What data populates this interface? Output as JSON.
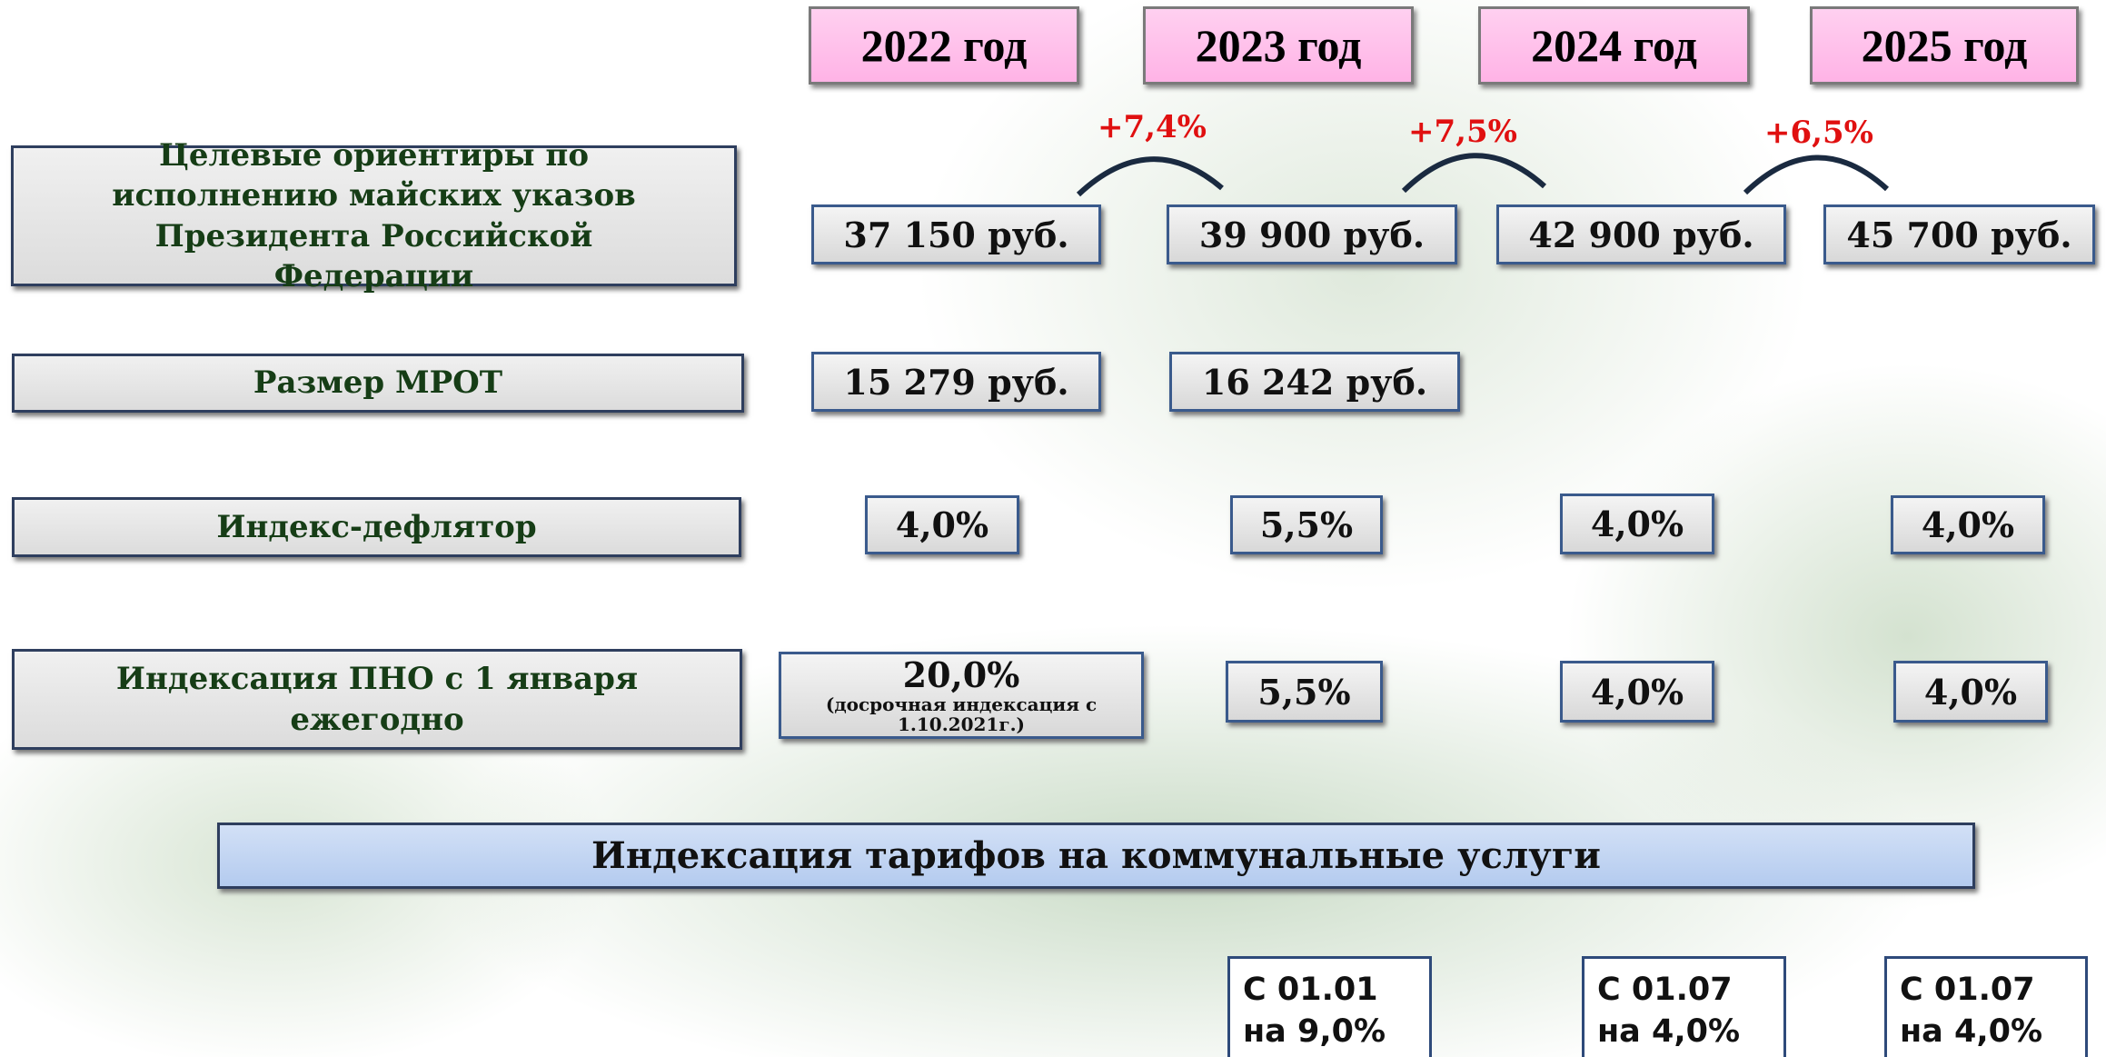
{
  "years": [
    "2022 год",
    "2023 год",
    "2024 год",
    "2025 год"
  ],
  "growth": [
    "+7,4%",
    "+7,5%",
    "+6,5%"
  ],
  "rows": [
    {
      "label": "Целевые ориентиры по исполнению майских указов Президента Российской Федерации",
      "cells": [
        "37 150 руб.",
        "39 900 руб.",
        "42 900 руб.",
        "45 700 руб."
      ]
    },
    {
      "label": "Размер МРОТ",
      "cells": [
        "15 279 руб.",
        "16 242 руб."
      ]
    },
    {
      "label": "Индекс-дефлятор",
      "cells": [
        "4,0%",
        "5,5%",
        "4,0%",
        "4,0%"
      ]
    },
    {
      "label": "Индексация ПНО с 1 января ежегодно",
      "cells": [
        "20,0%",
        "5,5%",
        "4,0%",
        "4,0%"
      ],
      "note": "(досрочная индексация с 1.10.2021г.)"
    }
  ],
  "banner": "Индексация тарифов на коммунальные услуги",
  "tariffs": [
    "С 01.01 на 9,0%",
    "С 01.07 на 4,0%",
    "С 01.07 на 4,0%"
  ]
}
